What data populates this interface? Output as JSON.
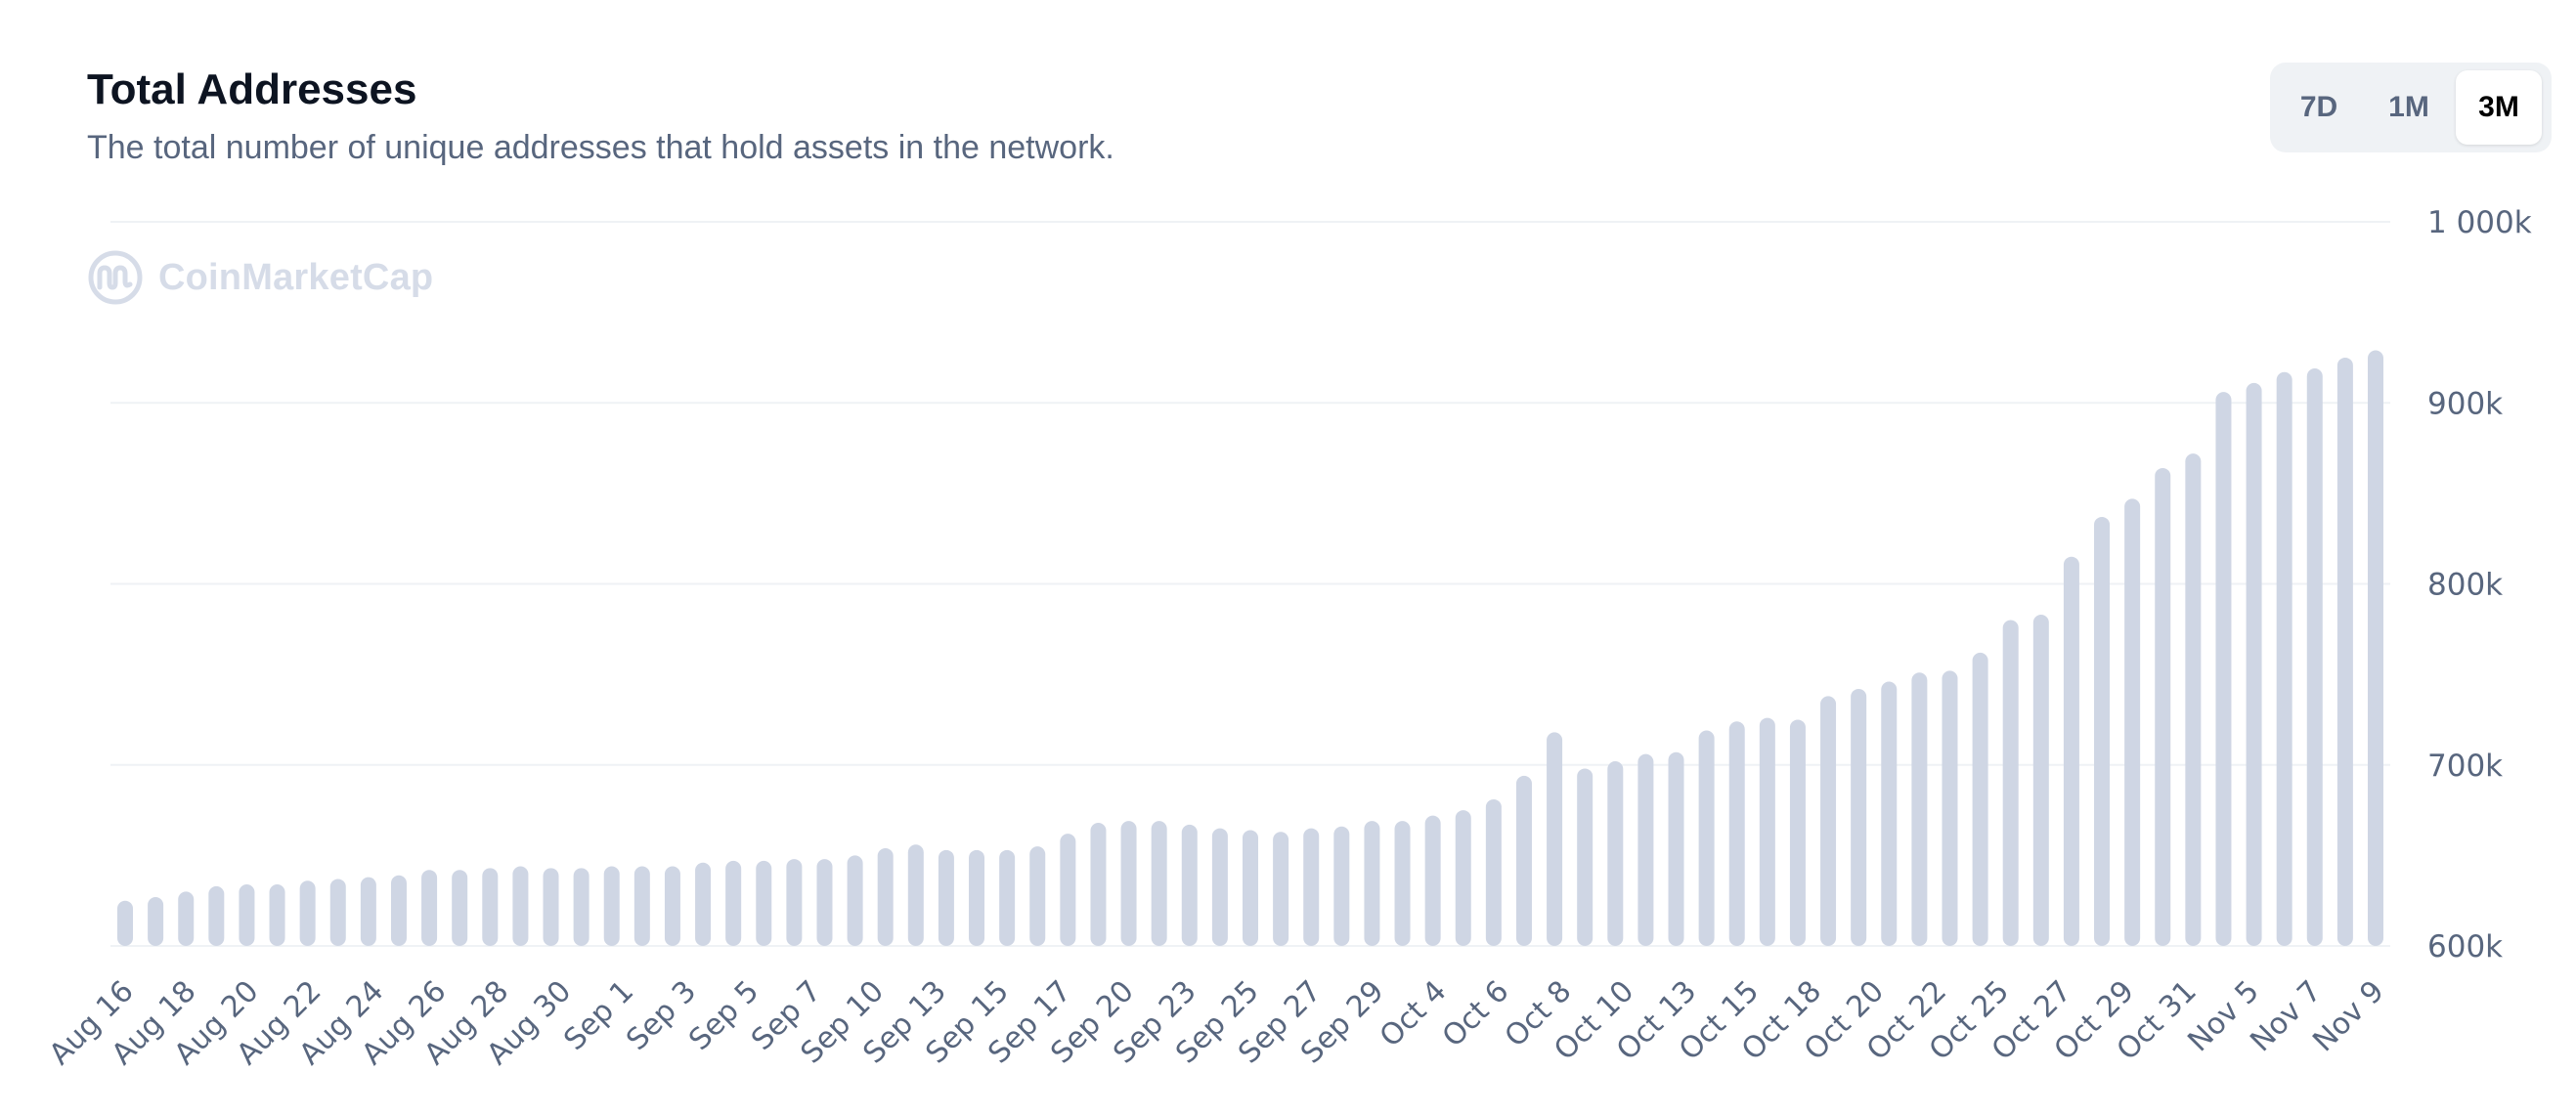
{
  "header": {
    "title": "Total Addresses",
    "subtitle": "The total number of unique addresses that hold assets in the network."
  },
  "range_tabs": {
    "items": [
      "7D",
      "1M",
      "3M"
    ],
    "selected": "3M"
  },
  "watermark": {
    "text": "CoinMarketCap",
    "icon": "coinmarketcap-logo-icon"
  },
  "colors": {
    "bar": "#cfd6e4",
    "grid": "#eff2f5",
    "tick_text": "#58667e",
    "title": "#0d1421",
    "watermark": "#cfd6e4"
  },
  "chart_data": {
    "type": "bar",
    "title": "Total Addresses",
    "subtitle": "The total number of unique addresses that hold assets in the network.",
    "xlabel": "",
    "ylabel": "",
    "ylim": [
      600000,
      1000000
    ],
    "yticks": [
      600000,
      700000,
      800000,
      900000,
      1000000
    ],
    "ytick_labels": [
      "600k",
      "700k",
      "800k",
      "900k",
      "1 000k"
    ],
    "y_axis_position": "right",
    "grid": true,
    "legend": "none",
    "x_tick_labels": [
      "Aug 16",
      "Aug 18",
      "Aug 20",
      "Aug 22",
      "Aug 24",
      "Aug 26",
      "Aug 28",
      "Aug 30",
      "Sep 1",
      "Sep 3",
      "Sep 5",
      "Sep 7",
      "Sep 10",
      "Sep 13",
      "Sep 15",
      "Sep 17",
      "Sep 20",
      "Sep 23",
      "Sep 25",
      "Sep 27",
      "Sep 29",
      "Oct 4",
      "Oct 6",
      "Oct 8",
      "Oct 10",
      "Oct 13",
      "Oct 15",
      "Oct 18",
      "Oct 20",
      "Oct 22",
      "Oct 25",
      "Oct 27",
      "Oct 29",
      "Oct 31",
      "Nov 5",
      "Nov 7",
      "Nov 9"
    ],
    "values": [
      625000,
      627000,
      630000,
      633000,
      634000,
      634000,
      636000,
      637000,
      638000,
      639000,
      642000,
      642000,
      643000,
      644000,
      643000,
      643000,
      644000,
      644000,
      644000,
      646000,
      647000,
      647000,
      648000,
      648000,
      650000,
      654000,
      656000,
      653000,
      653000,
      653000,
      655000,
      662000,
      668000,
      669000,
      669000,
      667000,
      665000,
      664000,
      663000,
      665000,
      666000,
      669000,
      669000,
      672000,
      675000,
      681000,
      694000,
      718000,
      698000,
      702000,
      706000,
      707000,
      719000,
      724000,
      726000,
      725000,
      738000,
      742000,
      746000,
      751000,
      752000,
      762000,
      780000,
      783000,
      815000,
      837000,
      847000,
      864000,
      872000,
      906000,
      911000,
      917000,
      919000,
      925000,
      929000
    ]
  }
}
